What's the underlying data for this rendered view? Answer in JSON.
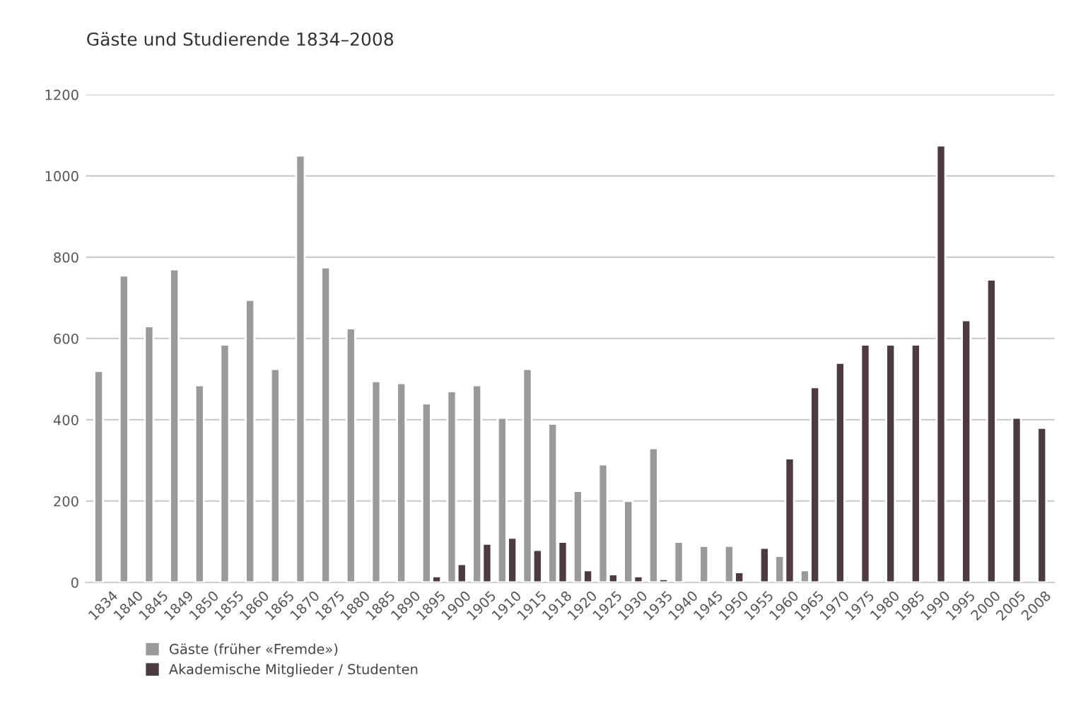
{
  "chart_data": {
    "type": "bar",
    "title": "Gäste und Studierende 1834–2008",
    "categories": [
      "1834",
      "1840",
      "1845",
      "1849",
      "1850",
      "1855",
      "1860",
      "1865",
      "1870",
      "1875",
      "1880",
      "1885",
      "1890",
      "1895",
      "1900",
      "1905",
      "1910",
      "1915",
      "1918",
      "1920",
      "1925",
      "1930",
      "1935",
      "1940",
      "1945",
      "1950",
      "1955",
      "1960",
      "1965",
      "1970",
      "1975",
      "1980",
      "1985",
      "1990",
      "1995",
      "2000",
      "2005",
      "2008"
    ],
    "series": [
      {
        "name": "Gäste (früher «Fremde»)",
        "color": "#9a9a9a",
        "values": [
          520,
          755,
          630,
          770,
          485,
          585,
          695,
          525,
          1050,
          775,
          625,
          495,
          490,
          440,
          470,
          485,
          405,
          525,
          390,
          225,
          290,
          200,
          330,
          100,
          90,
          90,
          null,
          65,
          30,
          null,
          null,
          null,
          null,
          null,
          null,
          null,
          null,
          null
        ]
      },
      {
        "name": "Akademische Mitglieder / Studenten",
        "color": "#4e3b3f",
        "values": [
          null,
          null,
          null,
          null,
          null,
          null,
          null,
          null,
          null,
          null,
          null,
          null,
          null,
          15,
          45,
          95,
          110,
          80,
          100,
          30,
          20,
          15,
          8,
          null,
          null,
          25,
          85,
          305,
          480,
          540,
          585,
          585,
          585,
          1075,
          645,
          745,
          405,
          380
        ]
      }
    ],
    "ylim": [
      0,
      1200
    ],
    "yticks": [
      0,
      200,
      400,
      600,
      800,
      1000,
      1200
    ],
    "grid": "y",
    "legend": "bottom left"
  }
}
